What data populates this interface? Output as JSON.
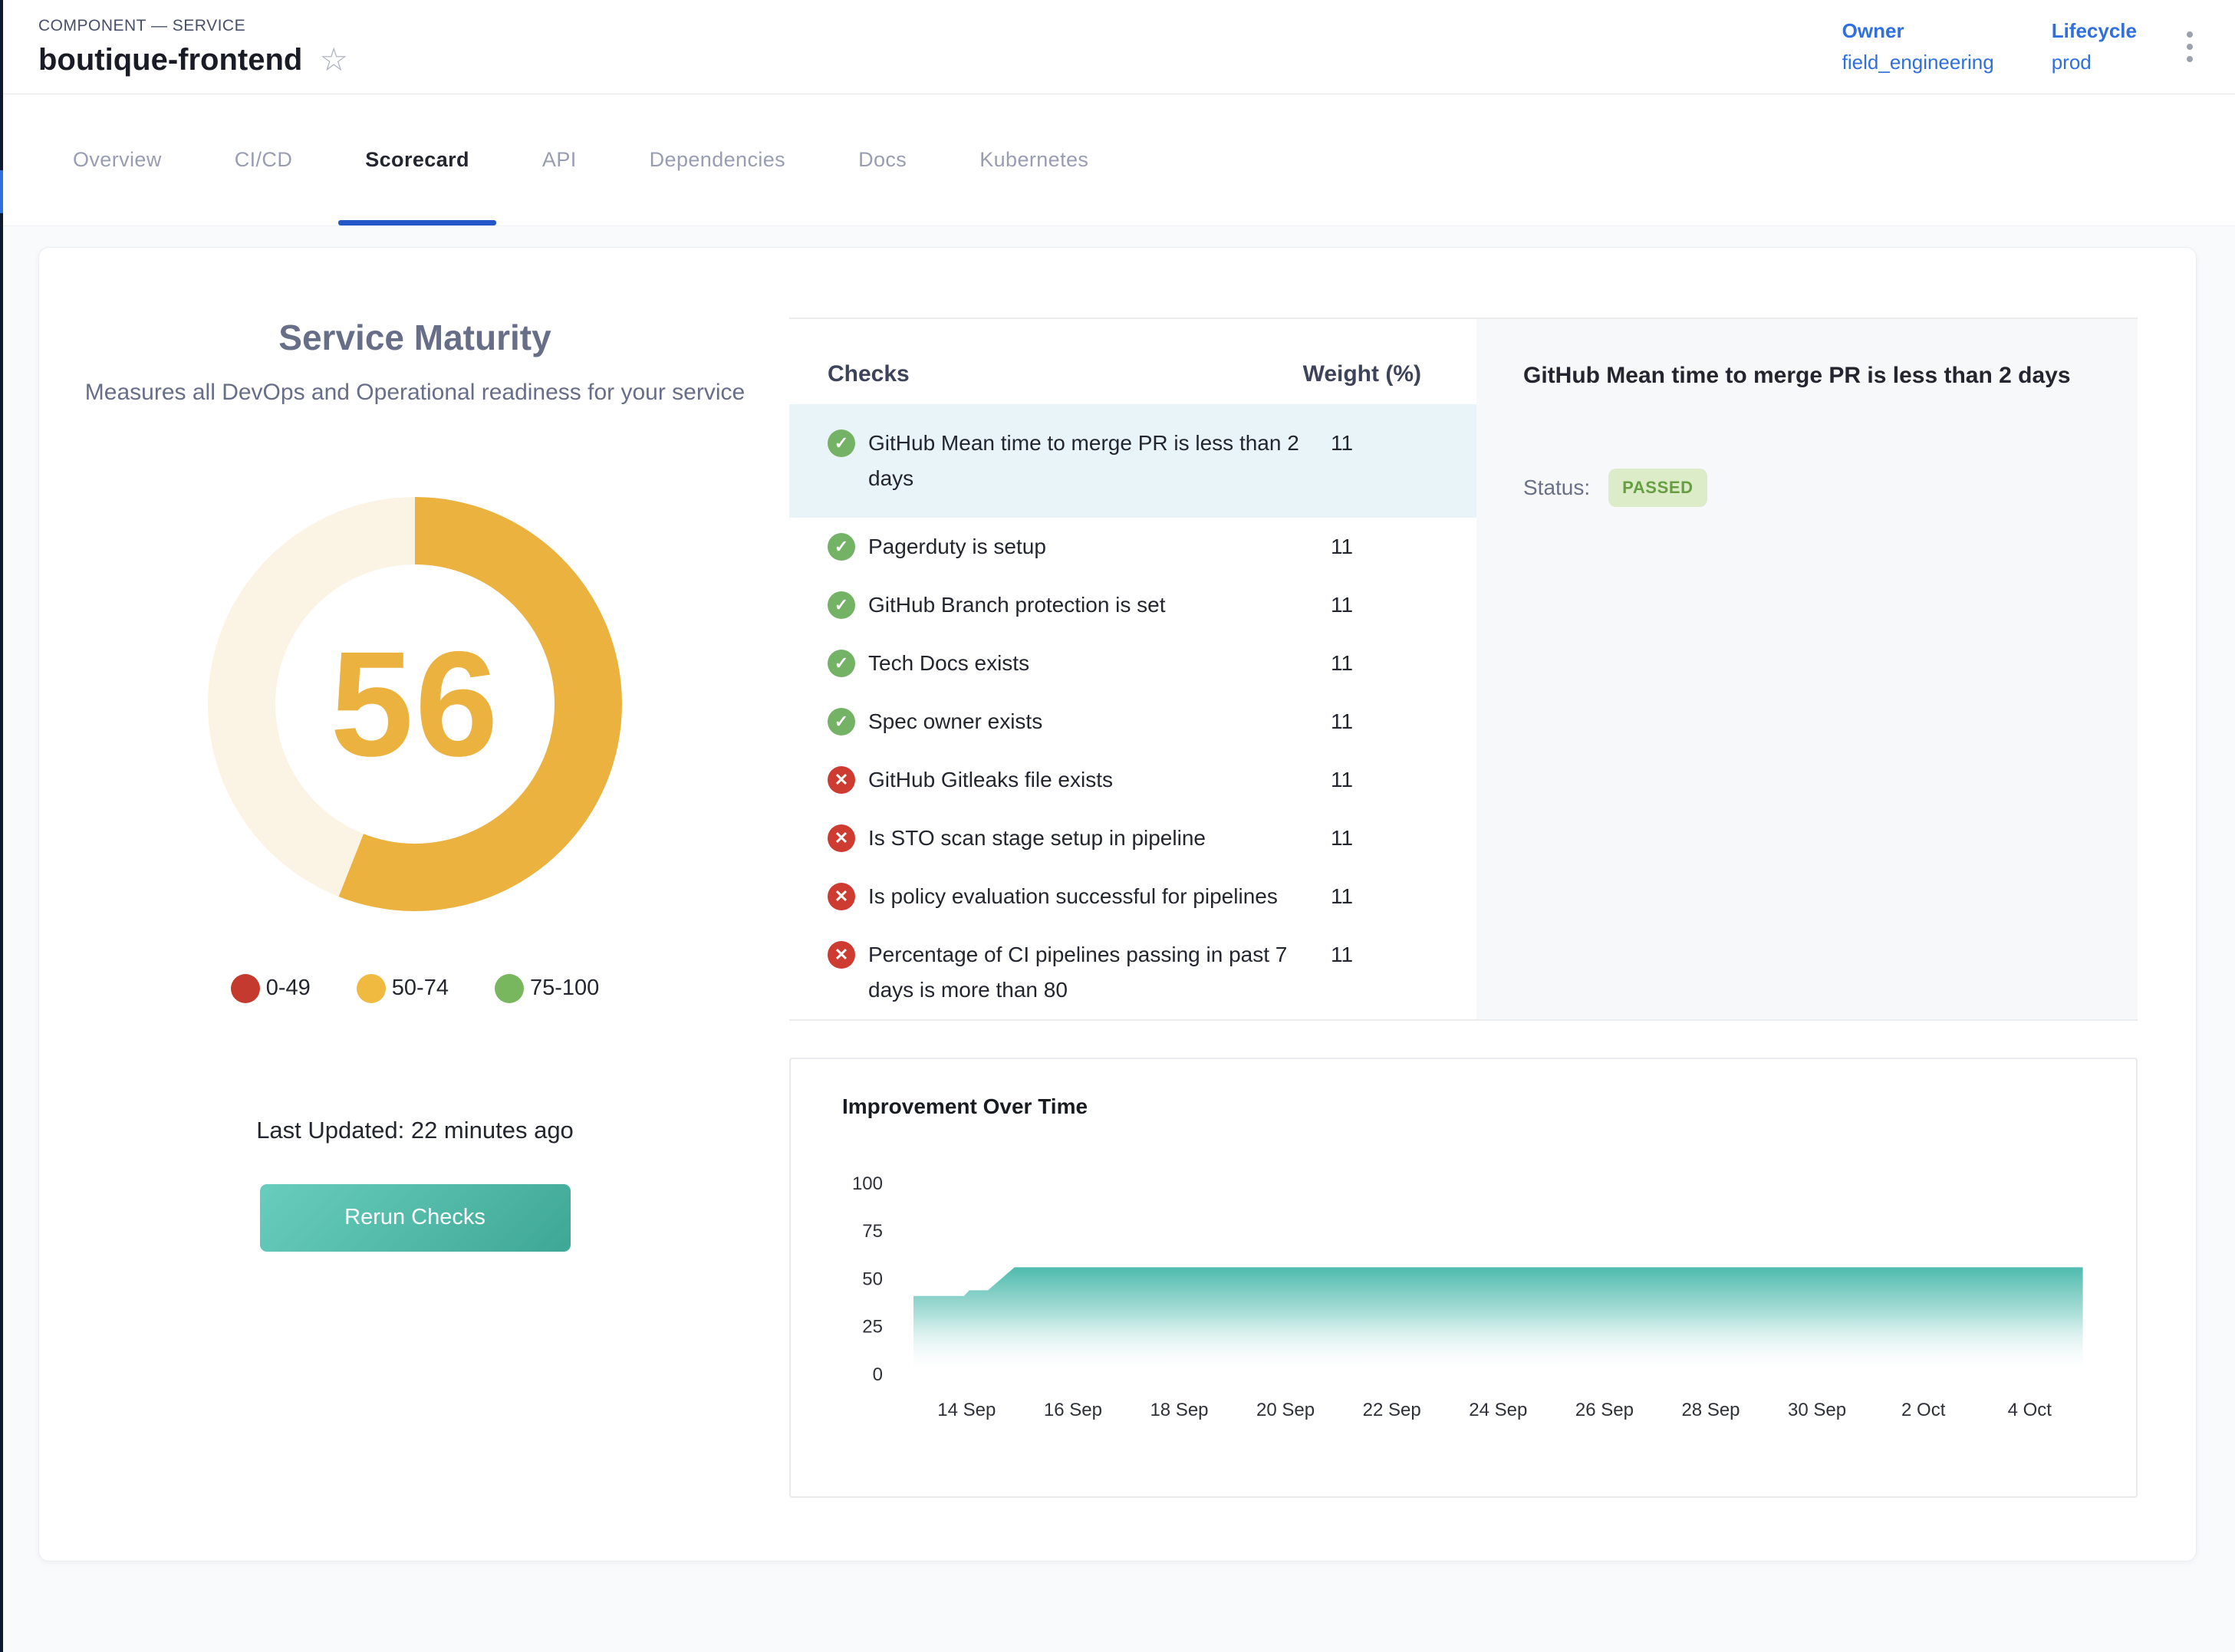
{
  "header": {
    "eyebrow": "COMPONENT — SERVICE",
    "title": "boutique-frontend",
    "owner_label": "Owner",
    "owner_value": "field_engineering",
    "lifecycle_label": "Lifecycle",
    "lifecycle_value": "prod"
  },
  "tabs": [
    {
      "label": "Overview",
      "active": false
    },
    {
      "label": "CI/CD",
      "active": false
    },
    {
      "label": "Scorecard",
      "active": true
    },
    {
      "label": "API",
      "active": false
    },
    {
      "label": "Dependencies",
      "active": false
    },
    {
      "label": "Docs",
      "active": false
    },
    {
      "label": "Kubernetes",
      "active": false
    }
  ],
  "scorecard": {
    "title": "Service Maturity",
    "subtitle": "Measures all DevOps and Operational readiness for your service",
    "score": "56",
    "score_color": "#ECB240",
    "gauge_track_color": "#FBF3E3",
    "legend": [
      {
        "range": "0-49",
        "color": "#C43A2F"
      },
      {
        "range": "50-74",
        "color": "#F0BA40"
      },
      {
        "range": "75-100",
        "color": "#79B75E"
      }
    ],
    "last_updated": "Last Updated: 22 minutes ago",
    "rerun_label": "Rerun Checks"
  },
  "checks": {
    "col_checks": "Checks",
    "col_weight": "Weight (%)",
    "pass_color": "#74B266",
    "fail_color": "#CE3B30",
    "rows": [
      {
        "label": "GitHub Mean time to merge PR is less than 2 days",
        "weight": "11",
        "status": "passed",
        "selected": true
      },
      {
        "label": "Pagerduty is setup",
        "weight": "11",
        "status": "passed",
        "selected": false
      },
      {
        "label": "GitHub Branch protection is set",
        "weight": "11",
        "status": "passed",
        "selected": false
      },
      {
        "label": "Tech Docs exists",
        "weight": "11",
        "status": "passed",
        "selected": false
      },
      {
        "label": "Spec owner exists",
        "weight": "11",
        "status": "passed",
        "selected": false
      },
      {
        "label": "GitHub Gitleaks file exists",
        "weight": "11",
        "status": "failed",
        "selected": false
      },
      {
        "label": "Is STO scan stage setup in pipeline",
        "weight": "11",
        "status": "failed",
        "selected": false
      },
      {
        "label": "Is policy evaluation successful for pipelines",
        "weight": "11",
        "status": "failed",
        "selected": false
      },
      {
        "label": "Percentage of CI pipelines passing in past 7 days is more than 80",
        "weight": "11",
        "status": "failed",
        "selected": false
      }
    ]
  },
  "detail": {
    "title": "GitHub Mean time to merge PR is less than 2 days",
    "status_label": "Status:",
    "status_value": "PASSED"
  },
  "chart_data": {
    "type": "area",
    "title": "Improvement Over Time",
    "start_date": "13 Sep",
    "series": [
      {
        "name": "maturity-score",
        "x_days_from_start": [
          0,
          0.95,
          1.05,
          1.4,
          1.9,
          22
        ],
        "values": [
          41,
          41,
          44,
          44,
          56,
          56
        ]
      }
    ],
    "x_tick_labels": [
      "14 Sep",
      "16 Sep",
      "18 Sep",
      "20 Sep",
      "22 Sep",
      "24 Sep",
      "26 Sep",
      "28 Sep",
      "30 Sep",
      "2 Oct",
      "4 Oct"
    ],
    "x_tick_days": [
      1,
      3,
      5,
      7,
      9,
      11,
      13,
      15,
      17,
      19,
      21
    ],
    "y_ticks": [
      100,
      75,
      50,
      25,
      0
    ],
    "ylim": [
      0,
      100
    ],
    "area_color": "#4FBBAE",
    "grid": false,
    "legend": false
  }
}
